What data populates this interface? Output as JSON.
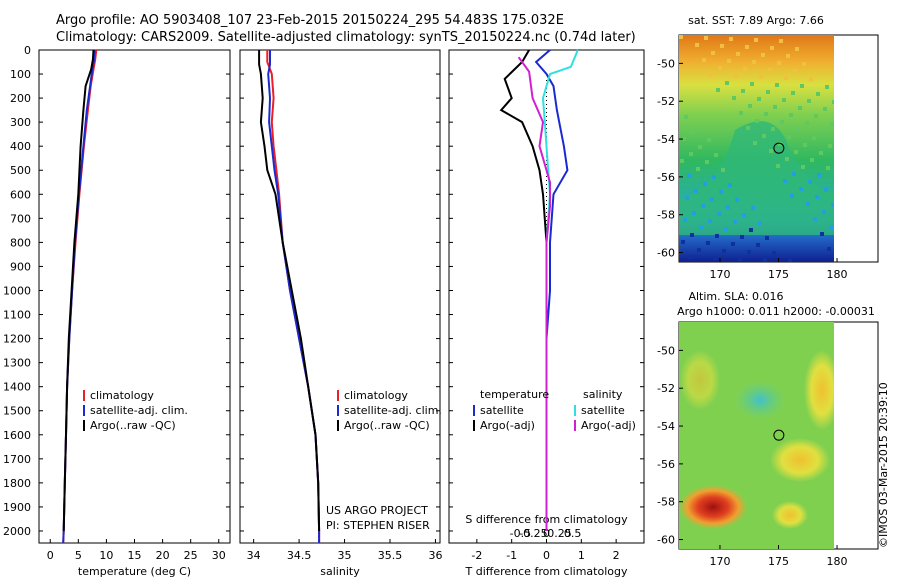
{
  "header": {
    "line1": "Argo profile: AO 5903408_107 23-Feb-2015 20150224_295 54.483S 175.032E",
    "line2": "Climatology: CARS2009. Satellite-adjusted climatology: synTS_20150224.nc (0.74d later)"
  },
  "depth_ticks": [
    "0",
    "100",
    "200",
    "300",
    "400",
    "500",
    "600",
    "700",
    "800",
    "900",
    "1000",
    "1100",
    "1200",
    "1300",
    "1400",
    "1500",
    "1600",
    "1700",
    "1800",
    "1900",
    "2000"
  ],
  "colors": {
    "climatology": "#e8202a",
    "satellite": "#1a2ad0",
    "argo": "#000000",
    "sat_s": "#30e0e0",
    "argo_s": "#d020d0"
  },
  "chart_data": [
    {
      "type": "line",
      "xlabel": "temperature (deg C)",
      "ylabel": "",
      "xticks": [
        "0",
        "5",
        "10",
        "15",
        "20",
        "25",
        "30"
      ],
      "xlim": [
        -2,
        32
      ],
      "ylim": [
        2050,
        0
      ],
      "legend_position": "bottom-center",
      "legend": [
        {
          "name": "climatology",
          "color": "#e8202a"
        },
        {
          "name": "satellite-adj. clim.",
          "color": "#1a2ad0"
        },
        {
          "name": "Argo(..raw -QC)",
          "color": "#000000"
        }
      ],
      "series": [
        {
          "name": "climatology",
          "color": "#e8202a",
          "points": [
            [
              8.2,
              0
            ],
            [
              8.0,
              40
            ],
            [
              7.7,
              80
            ],
            [
              7.2,
              150
            ],
            [
              6.7,
              250
            ],
            [
              6.0,
              400
            ],
            [
              5.2,
              600
            ],
            [
              4.5,
              800
            ],
            [
              3.9,
              1000
            ],
            [
              3.4,
              1200
            ],
            [
              3.0,
              1400
            ],
            [
              2.8,
              1600
            ],
            [
              2.6,
              1800
            ],
            [
              2.4,
              2000
            ],
            [
              2.3,
              2050
            ]
          ]
        },
        {
          "name": "satellite-adj. clim.",
          "color": "#1a2ad0",
          "points": [
            [
              7.9,
              0
            ],
            [
              7.8,
              40
            ],
            [
              7.5,
              80
            ],
            [
              7.1,
              150
            ],
            [
              6.5,
              250
            ],
            [
              5.9,
              400
            ],
            [
              5.1,
              600
            ],
            [
              4.4,
              800
            ],
            [
              3.9,
              1000
            ],
            [
              3.4,
              1200
            ],
            [
              3.0,
              1400
            ],
            [
              2.8,
              1600
            ],
            [
              2.6,
              1800
            ],
            [
              2.4,
              2000
            ],
            [
              2.3,
              2050
            ]
          ]
        },
        {
          "name": "Argo(..raw -QC)",
          "color": "#000000",
          "points": [
            [
              7.7,
              0
            ],
            [
              7.6,
              40
            ],
            [
              7.3,
              80
            ],
            [
              6.3,
              150
            ],
            [
              5.9,
              250
            ],
            [
              5.4,
              400
            ],
            [
              5.0,
              600
            ],
            [
              4.3,
              800
            ],
            [
              3.8,
              1000
            ],
            [
              3.3,
              1200
            ],
            [
              3.0,
              1400
            ],
            [
              2.8,
              1600
            ],
            [
              2.6,
              1800
            ],
            [
              2.4,
              2000
            ]
          ]
        }
      ]
    },
    {
      "type": "line",
      "xlabel": "salinity",
      "ylabel": "",
      "xticks": [
        "34",
        "34.5",
        "35",
        "35.5",
        "36"
      ],
      "xlim": [
        33.85,
        36.05
      ],
      "ylim": [
        2050,
        0
      ],
      "legend_position": "bottom-right",
      "legend": [
        {
          "name": "climatology",
          "color": "#e8202a"
        },
        {
          "name": "satellite-adj. clim.",
          "color": "#1a2ad0"
        },
        {
          "name": "Argo(..raw -QC)",
          "color": "#000000"
        }
      ],
      "annotation": [
        "US ARGO PROJECT",
        "PI: STEPHEN RISER"
      ],
      "series": [
        {
          "name": "climatology",
          "color": "#e8202a",
          "points": [
            [
              34.15,
              0
            ],
            [
              34.15,
              50
            ],
            [
              34.2,
              100
            ],
            [
              34.22,
              200
            ],
            [
              34.2,
              300
            ],
            [
              34.22,
              400
            ],
            [
              34.25,
              500
            ],
            [
              34.28,
              600
            ],
            [
              34.32,
              800
            ],
            [
              34.4,
              1000
            ],
            [
              34.5,
              1200
            ],
            [
              34.6,
              1400
            ],
            [
              34.68,
              1600
            ],
            [
              34.71,
              1800
            ],
            [
              34.72,
              2000
            ],
            [
              34.72,
              2050
            ]
          ]
        },
        {
          "name": "satellite-adj. clim.",
          "color": "#1a2ad0",
          "points": [
            [
              34.18,
              0
            ],
            [
              34.18,
              60
            ],
            [
              34.16,
              100
            ],
            [
              34.18,
              200
            ],
            [
              34.17,
              300
            ],
            [
              34.2,
              400
            ],
            [
              34.23,
              500
            ],
            [
              34.27,
              600
            ],
            [
              34.32,
              800
            ],
            [
              34.4,
              1000
            ],
            [
              34.5,
              1200
            ],
            [
              34.6,
              1400
            ],
            [
              34.68,
              1600
            ],
            [
              34.71,
              1800
            ],
            [
              34.72,
              2000
            ],
            [
              34.72,
              2050
            ]
          ]
        },
        {
          "name": "Argo(..raw -QC)",
          "color": "#000000",
          "points": [
            [
              34.06,
              0
            ],
            [
              34.06,
              60
            ],
            [
              34.08,
              100
            ],
            [
              34.1,
              200
            ],
            [
              34.08,
              300
            ],
            [
              34.12,
              400
            ],
            [
              34.15,
              500
            ],
            [
              34.24,
              600
            ],
            [
              34.32,
              800
            ],
            [
              34.42,
              1000
            ],
            [
              34.52,
              1200
            ],
            [
              34.6,
              1400
            ],
            [
              34.68,
              1600
            ],
            [
              34.71,
              1800
            ],
            [
              34.72,
              2000
            ]
          ]
        }
      ]
    },
    {
      "type": "line",
      "xlabel": "T difference from climatology",
      "xlabel2": "S difference from climatology",
      "ylabel": "",
      "xticks": [
        "-2",
        "-1",
        "0",
        "1",
        "2"
      ],
      "xticks2": [
        "-0.5",
        "-0.25",
        "0",
        "0.25",
        "0.5"
      ],
      "xlim": [
        -2.8,
        2.8
      ],
      "ylim": [
        2050,
        0
      ],
      "legend_position": "bottom",
      "legend": [
        {
          "group": "temperature"
        },
        {
          "name": "satellite",
          "color": "#1a2ad0"
        },
        {
          "name": "Argo(-adj)",
          "color": "#000000"
        },
        {
          "group": "salinity"
        },
        {
          "name": "satellite",
          "color": "#30e0e0"
        },
        {
          "name": "Argo(-adj)",
          "color": "#d020d0"
        }
      ],
      "series": [
        {
          "name": "satellite T",
          "color": "#1a2ad0",
          "points": [
            [
              0.1,
              0
            ],
            [
              -0.3,
              50
            ],
            [
              0,
              100
            ],
            [
              0.2,
              150
            ],
            [
              0.3,
              250
            ],
            [
              0.5,
              400
            ],
            [
              0.6,
              500
            ],
            [
              0.2,
              600
            ],
            [
              0.1,
              800
            ],
            [
              0.1,
              1000
            ],
            [
              0,
              1200
            ],
            [
              0,
              1400
            ],
            [
              0,
              1600
            ],
            [
              0,
              1800
            ],
            [
              0,
              2000
            ]
          ]
        },
        {
          "name": "Argo T",
          "color": "#000000",
          "points": [
            [
              -0.5,
              0
            ],
            [
              -0.7,
              50
            ],
            [
              -1.2,
              120
            ],
            [
              -1.0,
              200
            ],
            [
              -1.3,
              250
            ],
            [
              -0.7,
              300
            ],
            [
              -0.4,
              400
            ],
            [
              -0.2,
              500
            ],
            [
              -0.1,
              600
            ],
            [
              0,
              800
            ],
            [
              0,
              1000
            ],
            [
              0,
              1200
            ],
            [
              0,
              1400
            ],
            [
              0,
              1600
            ],
            [
              0,
              1800
            ],
            [
              0,
              2000
            ]
          ]
        },
        {
          "name": "satellite S",
          "color": "#30e0e0",
          "points": [
            [
              0.9,
              0
            ],
            [
              0.7,
              70
            ],
            [
              0.1,
              100
            ],
            [
              -0.1,
              200
            ],
            [
              -0.05,
              300
            ],
            [
              0,
              400
            ],
            [
              0.05,
              500
            ],
            [
              0.1,
              600
            ],
            [
              0,
              800
            ],
            [
              0,
              1000
            ],
            [
              0,
              1200
            ],
            [
              0,
              1400
            ],
            [
              0,
              1600
            ],
            [
              0,
              1800
            ],
            [
              0,
              2000
            ]
          ]
        },
        {
          "name": "Argo S",
          "color": "#d020d0",
          "points": [
            [
              -0.8,
              30
            ],
            [
              -0.5,
              90
            ],
            [
              -0.4,
              200
            ],
            [
              -0.1,
              300
            ],
            [
              -0.2,
              400
            ],
            [
              -0.1,
              450
            ],
            [
              0.1,
              550
            ],
            [
              0.1,
              650
            ],
            [
              0,
              800
            ],
            [
              0,
              1000
            ],
            [
              0,
              1200
            ],
            [
              0,
              1400
            ],
            [
              0,
              1600
            ],
            [
              0,
              1800
            ],
            [
              0,
              2000
            ]
          ]
        }
      ]
    },
    {
      "type": "heatmap",
      "title": "sat. SST: 7.89 Argo: 7.66",
      "xticks": [
        "170",
        "175",
        "180"
      ],
      "yticks": [
        "-50",
        "-52",
        "-54",
        "-56",
        "-58",
        "-60"
      ],
      "xlim": [
        166.5,
        183.5
      ],
      "ylim": [
        -60.5,
        -48.5
      ],
      "marker": {
        "lon": 175.032,
        "lat": -54.483
      }
    },
    {
      "type": "heatmap",
      "title": "Altim. SLA: 0.016",
      "subtitle": "Argo h1000: 0.011 h2000: -0.00031",
      "xticks": [
        "170",
        "175",
        "180"
      ],
      "yticks": [
        "-50",
        "-52",
        "-54",
        "-56",
        "-58",
        "-60"
      ],
      "xlim": [
        166.5,
        183.5
      ],
      "ylim": [
        -60.5,
        -48.5
      ],
      "marker": {
        "lon": 175.032,
        "lat": -54.483
      }
    }
  ],
  "credit": "©IMOS 03-Mar-2015 20:39:10"
}
